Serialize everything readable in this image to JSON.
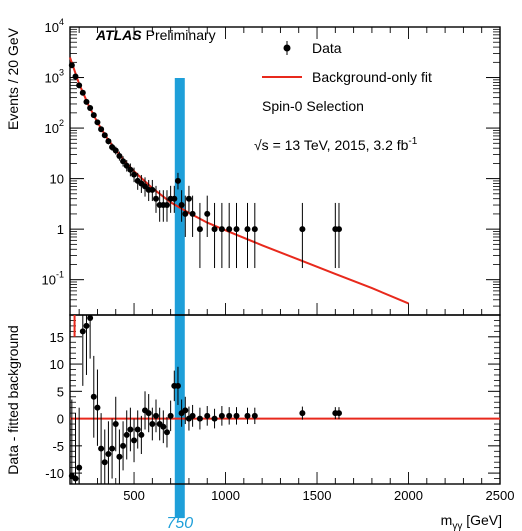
{
  "chart_data": [
    {
      "type": "scatter",
      "panel": "main",
      "yscale": "log",
      "ylabel": "Events / 20 GeV",
      "xlim": [
        150,
        2500
      ],
      "ylim": [
        0.02,
        10000
      ],
      "y_ticks": [
        {
          "value": 10000,
          "base": "10",
          "exp": "4"
        },
        {
          "value": 1000,
          "base": "10",
          "exp": "3"
        },
        {
          "value": 100,
          "base": "10",
          "exp": "2"
        },
        {
          "value": 10,
          "base": "10",
          "exp": ""
        },
        {
          "value": 1,
          "base": "1",
          "exp": ""
        },
        {
          "value": 0.1,
          "base": "10",
          "exp": "-1"
        }
      ],
      "annotation_atlas": "ATLAS",
      "annotation_prelim": "Preliminary",
      "annotation_selection": "Spin-0 Selection",
      "annotation_energy": "√s = 13 TeV, 2015, 3.2 fb",
      "annotation_energy_sup": "-1",
      "legend": [
        "Data",
        "Background-only fit"
      ],
      "legend_position": "top-right",
      "colors": {
        "data": "#000000",
        "fit": "#e8291c",
        "highlight": "#1e9fd9"
      },
      "data": {
        "x": [
          160,
          180,
          200,
          220,
          240,
          260,
          280,
          300,
          320,
          340,
          360,
          380,
          400,
          420,
          440,
          460,
          480,
          500,
          520,
          540,
          560,
          580,
          600,
          620,
          640,
          660,
          680,
          700,
          720,
          740,
          760,
          780,
          800,
          820,
          860,
          900,
          940,
          980,
          1020,
          1060,
          1120,
          1160,
          1420,
          1600,
          1620
        ],
        "y": [
          1750,
          1050,
          700,
          500,
          330,
          250,
          180,
          130,
          95,
          72,
          55,
          42,
          36,
          28,
          22,
          18,
          15,
          12,
          9,
          8,
          7,
          6,
          6,
          4,
          3,
          3,
          3,
          4,
          4,
          9,
          3,
          2,
          4,
          2,
          1,
          2,
          1,
          1,
          1,
          1,
          1,
          1,
          1,
          1,
          1
        ],
        "err_up": [
          45,
          35,
          28,
          24,
          20,
          17,
          14,
          12,
          10.6,
          9.5,
          8.5,
          7.5,
          7,
          6.3,
          5.7,
          5.3,
          4.9,
          4.5,
          4,
          3.8,
          3.6,
          3.4,
          3.4,
          3.2,
          2.9,
          2.9,
          2.9,
          3.2,
          3.2,
          4,
          2.9,
          2.6,
          3.2,
          2.6,
          2.3,
          2.6,
          2.3,
          2.3,
          2.3,
          2.3,
          2.3,
          2.3,
          2.3,
          2.3,
          2.3
        ],
        "err_down": [
          42,
          32,
          26,
          22,
          18,
          16,
          13,
          11,
          9.8,
          8.5,
          7.4,
          6.5,
          6,
          5.3,
          4.7,
          4.2,
          3.9,
          3.5,
          3,
          2.8,
          2.6,
          2.4,
          2.4,
          1.9,
          1.6,
          1.6,
          1.6,
          1.9,
          1.9,
          2.9,
          1.6,
          1.3,
          1.9,
          1.3,
          0.83,
          1.3,
          0.83,
          0.83,
          0.83,
          0.83,
          0.83,
          0.83,
          0.83,
          0.83,
          0.83
        ]
      },
      "fit": {
        "x": [
          150,
          200,
          250,
          300,
          350,
          400,
          450,
          500,
          600,
          700,
          800,
          900,
          1000,
          1200,
          1400,
          1600,
          1800,
          2000
        ],
        "y": [
          2500,
          750,
          290,
          130,
          65,
          37,
          22,
          14,
          6.5,
          3.4,
          2.1,
          1.35,
          0.95,
          0.48,
          0.25,
          0.13,
          0.068,
          0.034
        ]
      },
      "highlight": {
        "x": 750,
        "label": "750"
      }
    },
    {
      "type": "scatter",
      "panel": "residual",
      "ylabel": "Data - fitted background",
      "xlabel_base": "m",
      "xlabel_sub": "γγ",
      "xlabel_unit": " [GeV]",
      "xlim": [
        150,
        2500
      ],
      "ylim": [
        -12,
        19
      ],
      "y_ticks": [
        15,
        10,
        5,
        0,
        -5,
        -10
      ],
      "x_ticks": [
        500,
        1000,
        1500,
        2000,
        2500
      ],
      "data": {
        "x": [
          160,
          180,
          200,
          220,
          240,
          260,
          280,
          300,
          320,
          340,
          360,
          380,
          400,
          420,
          440,
          460,
          480,
          500,
          520,
          540,
          560,
          580,
          600,
          620,
          640,
          660,
          680,
          700,
          720,
          740,
          760,
          780,
          800,
          820,
          860,
          900,
          940,
          980,
          1020,
          1060,
          1120,
          1160,
          1420,
          1600,
          1620
        ],
        "y": [
          -10.5,
          -11,
          -9,
          16,
          17,
          19,
          4,
          2,
          -5.5,
          -8,
          -6.5,
          -5.5,
          -1,
          -7,
          -5,
          -3,
          -2,
          -4,
          -2,
          -3,
          1.5,
          1,
          -1,
          0.5,
          -1,
          -1.5,
          -2.5,
          0.5,
          6,
          6,
          1,
          1.5,
          0,
          0.5,
          0,
          0.5,
          0,
          0.5,
          0.5,
          0.5,
          0.5,
          0.5,
          1,
          1,
          1
        ],
        "err": [
          14,
          12,
          11,
          10,
          9,
          8,
          7.5,
          7,
          6.5,
          6,
          6,
          5.5,
          5,
          5,
          4.5,
          4.5,
          4,
          4,
          3.5,
          3.5,
          3.5,
          3.5,
          3,
          3,
          3,
          3,
          2.8,
          2.8,
          2.8,
          3.5,
          2.5,
          2.5,
          2.2,
          2,
          2,
          1.8,
          1.8,
          1.8,
          1.6,
          1.6,
          1.5,
          1.5,
          1.2,
          1.1,
          1.1
        ]
      },
      "fit_line_y": 0,
      "red_mark": {
        "x": 175,
        "y_top": 19,
        "y_bottom": 15
      }
    }
  ]
}
